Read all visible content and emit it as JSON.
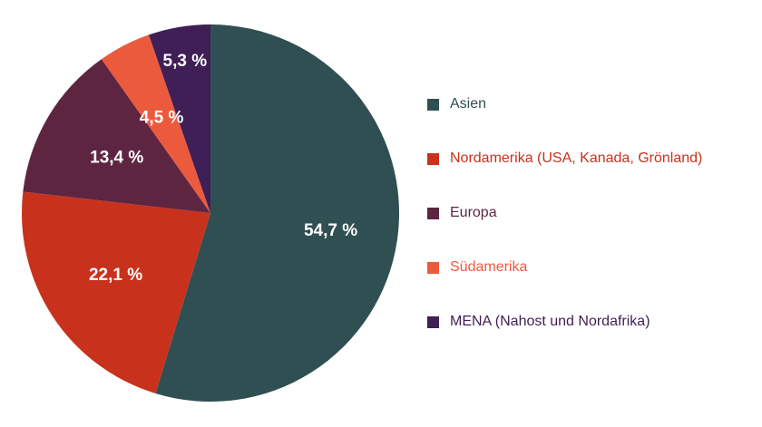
{
  "chart_data": {
    "type": "pie",
    "title": "",
    "start_angle_deg": 0,
    "direction": "clockwise",
    "slices": [
      {
        "name": "Asien",
        "value": 54.7,
        "label": "54,7 %",
        "color": "#2f4f52",
        "legend_text_color": "#2f4f52"
      },
      {
        "name": "Nordamerika (USA, Kanada, Grönland)",
        "value": 22.1,
        "label": "22,1 %",
        "color": "#c8321c",
        "legend_text_color": "#c8321c"
      },
      {
        "name": "Europa",
        "value": 13.4,
        "label": "13,4 %",
        "color": "#5e2541",
        "legend_text_color": "#5e2541"
      },
      {
        "name": "Südamerika",
        "value": 4.5,
        "label": "4,5 %",
        "color": "#ec5a3e",
        "legend_text_color": "#ec5a3e"
      },
      {
        "name": "MENA (Nahost und Nordafrika)",
        "value": 5.3,
        "label": "5,3 %",
        "color": "#3f1f56",
        "legend_text_color": "#3f1f56"
      }
    ],
    "legend_position": "right"
  }
}
